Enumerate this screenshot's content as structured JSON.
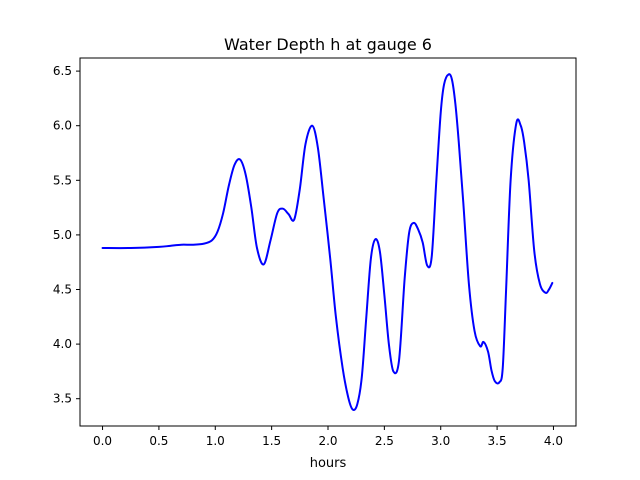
{
  "chart_data": {
    "type": "line",
    "title": "Water Depth h at gauge 6",
    "xlabel": "hours",
    "ylabel": "",
    "xlim": [
      -0.2,
      4.2
    ],
    "ylim": [
      3.25,
      6.62
    ],
    "xticks": [
      0.0,
      0.5,
      1.0,
      1.5,
      2.0,
      2.5,
      3.0,
      3.5,
      4.0
    ],
    "xtick_labels": [
      "0.0",
      "0.5",
      "1.0",
      "1.5",
      "2.0",
      "2.5",
      "3.0",
      "3.5",
      "4.0"
    ],
    "yticks": [
      3.5,
      4.0,
      4.5,
      5.0,
      5.5,
      6.0,
      6.5
    ],
    "ytick_labels": [
      "3.5",
      "4.0",
      "4.5",
      "5.0",
      "5.5",
      "6.0",
      "6.5"
    ],
    "grid": false,
    "legend": false,
    "series": [
      {
        "color": "#0000ff",
        "x": [
          0.0,
          0.25,
          0.5,
          0.6,
          0.7,
          0.8,
          0.9,
          0.97,
          1.02,
          1.07,
          1.12,
          1.17,
          1.22,
          1.27,
          1.32,
          1.37,
          1.43,
          1.49,
          1.55,
          1.6,
          1.65,
          1.7,
          1.75,
          1.8,
          1.86,
          1.91,
          1.96,
          2.02,
          2.07,
          2.13,
          2.18,
          2.22,
          2.26,
          2.3,
          2.34,
          2.38,
          2.42,
          2.46,
          2.5,
          2.54,
          2.58,
          2.63,
          2.68,
          2.72,
          2.76,
          2.8,
          2.84,
          2.88,
          2.92,
          2.96,
          3.0,
          3.03,
          3.07,
          3.1,
          3.13,
          3.16,
          3.2,
          3.25,
          3.3,
          3.35,
          3.38,
          3.42,
          3.45,
          3.48,
          3.52,
          3.55,
          3.58,
          3.62,
          3.67,
          3.71,
          3.74,
          3.78,
          3.83,
          3.88,
          3.93,
          3.96,
          3.99
        ],
        "y": [
          4.88,
          4.88,
          4.89,
          4.9,
          4.91,
          4.91,
          4.92,
          4.95,
          5.03,
          5.2,
          5.45,
          5.64,
          5.69,
          5.55,
          5.25,
          4.88,
          4.73,
          4.95,
          5.2,
          5.24,
          5.19,
          5.14,
          5.42,
          5.83,
          6.0,
          5.8,
          5.35,
          4.78,
          4.25,
          3.78,
          3.51,
          3.4,
          3.45,
          3.7,
          4.25,
          4.78,
          4.96,
          4.85,
          4.45,
          4.0,
          3.75,
          3.85,
          4.6,
          5.02,
          5.11,
          5.05,
          4.93,
          4.72,
          4.8,
          5.48,
          6.12,
          6.38,
          6.47,
          6.42,
          6.2,
          5.85,
          5.3,
          4.55,
          4.12,
          3.98,
          4.02,
          3.93,
          3.76,
          3.66,
          3.65,
          3.78,
          4.5,
          5.5,
          6.02,
          6.0,
          5.85,
          5.5,
          4.85,
          4.55,
          4.47,
          4.5,
          4.56
        ]
      }
    ]
  }
}
